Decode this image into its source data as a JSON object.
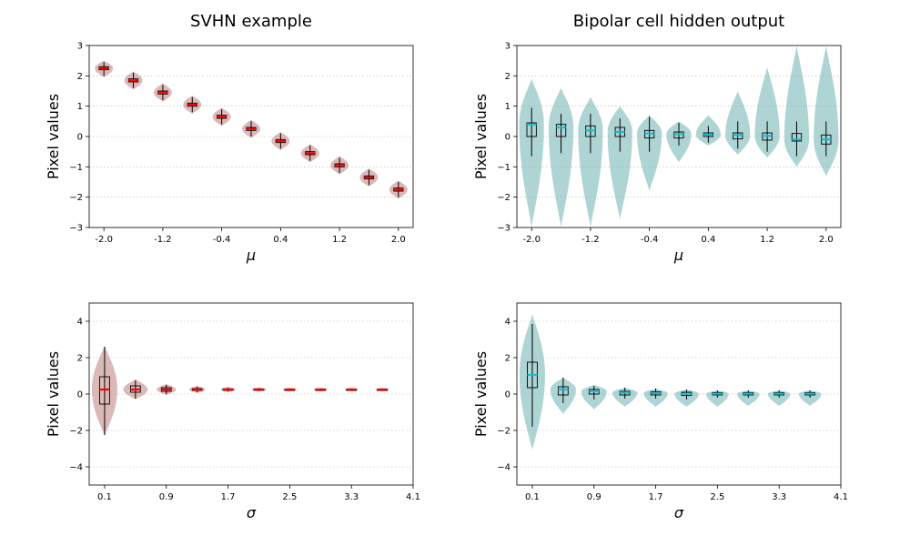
{
  "chart_data": [
    {
      "type": "violin",
      "title": "SVHN example",
      "xlabel": "μ",
      "ylabel": "Pixel values",
      "xticks": [
        "-2.0",
        "-1.2",
        "-0.4",
        "0.4",
        "1.2",
        "2.0"
      ],
      "yticks": [
        "3",
        "2",
        "1",
        "0",
        "−1",
        "−2",
        "−3"
      ],
      "ylim": [
        -3,
        3
      ],
      "grid": "horizontal dotted",
      "fill_color": "#c48a8a",
      "median_color": "#ff0000",
      "x": [
        -2.0,
        -1.6,
        -1.2,
        -0.8,
        -0.4,
        0.0,
        0.4,
        0.8,
        1.2,
        1.6,
        2.0
      ],
      "violins": [
        {
          "median": 2.25,
          "q1": 2.2,
          "q3": 2.3,
          "min": 2.0,
          "max": 2.45
        },
        {
          "median": 1.85,
          "q1": 1.8,
          "q3": 1.9,
          "min": 1.6,
          "max": 2.1
        },
        {
          "median": 1.45,
          "q1": 1.4,
          "q3": 1.5,
          "min": 1.2,
          "max": 1.7
        },
        {
          "median": 1.05,
          "q1": 1.0,
          "q3": 1.1,
          "min": 0.8,
          "max": 1.3
        },
        {
          "median": 0.65,
          "q1": 0.6,
          "q3": 0.7,
          "min": 0.4,
          "max": 0.9
        },
        {
          "median": 0.25,
          "q1": 0.2,
          "q3": 0.3,
          "min": 0.0,
          "max": 0.5
        },
        {
          "median": -0.15,
          "q1": -0.2,
          "q3": -0.1,
          "min": -0.4,
          "max": 0.1
        },
        {
          "median": -0.55,
          "q1": -0.6,
          "q3": -0.5,
          "min": -0.8,
          "max": -0.3
        },
        {
          "median": -0.95,
          "q1": -1.0,
          "q3": -0.9,
          "min": -1.2,
          "max": -0.7
        },
        {
          "median": -1.35,
          "q1": -1.4,
          "q3": -1.3,
          "min": -1.6,
          "max": -1.1
        },
        {
          "median": -1.75,
          "q1": -1.8,
          "q3": -1.7,
          "min": -2.0,
          "max": -1.5
        }
      ]
    },
    {
      "type": "violin",
      "title": "Bipolar cell hidden output",
      "xlabel": "μ",
      "ylabel": "Pixel values",
      "xticks": [
        "-2.0",
        "-1.2",
        "-0.4",
        "0.4",
        "1.2",
        "2.0"
      ],
      "yticks": [
        "3",
        "2",
        "1",
        "0",
        "−1",
        "−2",
        "−3"
      ],
      "ylim": [
        -3,
        3
      ],
      "grid": "horizontal dotted",
      "fill_color": "#7ab8b8",
      "median_color": "#17becf",
      "x": [
        -2.0,
        -1.6,
        -1.2,
        -0.8,
        -0.4,
        0.0,
        0.4,
        0.8,
        1.2,
        1.6,
        2.0
      ],
      "violins": [
        {
          "median": 0.4,
          "q1": 0.0,
          "q3": 0.45,
          "min": -0.65,
          "max": 0.95,
          "vmin": -3.0,
          "vmax": 1.9
        },
        {
          "median": 0.3,
          "q1": 0.0,
          "q3": 0.4,
          "min": -0.55,
          "max": 0.75,
          "vmin": -3.0,
          "vmax": 1.6
        },
        {
          "median": 0.2,
          "q1": 0.0,
          "q3": 0.35,
          "min": -0.55,
          "max": 0.75,
          "vmin": -3.0,
          "vmax": 1.3
        },
        {
          "median": 0.15,
          "q1": 0.0,
          "q3": 0.3,
          "min": -0.5,
          "max": 0.6,
          "vmin": -2.75,
          "vmax": 1.0
        },
        {
          "median": 0.1,
          "q1": -0.05,
          "q3": 0.2,
          "min": -0.5,
          "max": 0.65,
          "vmin": -1.8,
          "vmax": 0.7
        },
        {
          "median": 0.08,
          "q1": -0.05,
          "q3": 0.15,
          "min": -0.3,
          "max": 0.45,
          "vmin": -0.85,
          "vmax": 0.5
        },
        {
          "median": 0.06,
          "q1": 0.0,
          "q3": 0.12,
          "min": -0.2,
          "max": 0.35,
          "vmin": -0.3,
          "vmax": 0.7
        },
        {
          "median": 0.05,
          "q1": -0.08,
          "q3": 0.12,
          "min": -0.4,
          "max": 0.5,
          "vmin": -0.6,
          "vmax": 1.5
        },
        {
          "median": 0.02,
          "q1": -0.12,
          "q3": 0.12,
          "min": -0.5,
          "max": 0.5,
          "vmin": -0.7,
          "vmax": 2.3
        },
        {
          "median": -0.1,
          "q1": -0.15,
          "q3": 0.1,
          "min": -0.65,
          "max": 0.5,
          "vmin": -1.0,
          "vmax": 3.0
        },
        {
          "median": -0.1,
          "q1": -0.25,
          "q3": 0.05,
          "min": -0.65,
          "max": 0.5,
          "vmin": -1.3,
          "vmax": 3.0
        }
      ]
    },
    {
      "type": "violin",
      "title": "",
      "xlabel": "σ",
      "ylabel": "Pixel values",
      "xticks": [
        "0.1",
        "0.9",
        "1.7",
        "2.5",
        "3.3",
        "4.1"
      ],
      "yticks": [
        "4",
        "2",
        "0",
        "−2",
        "−4"
      ],
      "ylim": [
        -5,
        5
      ],
      "grid": "horizontal dotted",
      "fill_color": "#c48a8a",
      "median_color": "#ff0000",
      "x": [
        0.1,
        0.5,
        0.9,
        1.3,
        1.7,
        2.1,
        2.5,
        2.9,
        3.3,
        3.7
      ],
      "violins": [
        {
          "median": 0.25,
          "q1": -0.55,
          "q3": 0.95,
          "min": -2.25,
          "max": 2.6
        },
        {
          "median": 0.25,
          "q1": 0.1,
          "q3": 0.45,
          "min": -0.25,
          "max": 0.75
        },
        {
          "median": 0.25,
          "q1": 0.15,
          "q3": 0.35,
          "min": 0.0,
          "max": 0.5
        },
        {
          "median": 0.25,
          "q1": 0.2,
          "q3": 0.3,
          "min": 0.1,
          "max": 0.4
        },
        {
          "median": 0.25,
          "q1": 0.22,
          "q3": 0.28,
          "min": 0.15,
          "max": 0.35
        },
        {
          "median": 0.25,
          "q1": 0.22,
          "q3": 0.28,
          "min": 0.18,
          "max": 0.32
        },
        {
          "median": 0.25,
          "q1": 0.23,
          "q3": 0.27,
          "min": 0.2,
          "max": 0.3
        },
        {
          "median": 0.25,
          "q1": 0.23,
          "q3": 0.27,
          "min": 0.2,
          "max": 0.3
        },
        {
          "median": 0.25,
          "q1": 0.23,
          "q3": 0.27,
          "min": 0.21,
          "max": 0.29
        },
        {
          "median": 0.25,
          "q1": 0.23,
          "q3": 0.27,
          "min": 0.21,
          "max": 0.29
        }
      ]
    },
    {
      "type": "violin",
      "title": "",
      "xlabel": "σ",
      "ylabel": "Pixel values",
      "xticks": [
        "0.1",
        "0.9",
        "1.7",
        "2.5",
        "3.3",
        "4.1"
      ],
      "yticks": [
        "4",
        "2",
        "0",
        "−2",
        "−4"
      ],
      "ylim": [
        -5,
        5
      ],
      "grid": "horizontal dotted",
      "fill_color": "#7ab8b8",
      "median_color": "#17becf",
      "x": [
        0.1,
        0.5,
        0.9,
        1.3,
        1.7,
        2.1,
        2.5,
        2.9,
        3.3,
        3.7
      ],
      "violins": [
        {
          "median": 1.05,
          "q1": 0.35,
          "q3": 1.75,
          "min": -1.8,
          "max": 3.85,
          "vmin": -3.1,
          "vmax": 4.4
        },
        {
          "median": 0.25,
          "q1": -0.05,
          "q3": 0.4,
          "min": -0.5,
          "max": 0.9,
          "vmin": -1.1,
          "vmax": 0.9
        },
        {
          "median": 0.15,
          "q1": 0.0,
          "q3": 0.25,
          "min": -0.3,
          "max": 0.45,
          "vmin": -0.85,
          "vmax": 0.5
        },
        {
          "median": 0.08,
          "q1": -0.05,
          "q3": 0.15,
          "min": -0.25,
          "max": 0.35,
          "vmin": -0.7,
          "vmax": 0.35
        },
        {
          "median": 0.05,
          "q1": -0.05,
          "q3": 0.12,
          "min": -0.25,
          "max": 0.3,
          "vmin": -0.7,
          "vmax": 0.3
        },
        {
          "median": 0.02,
          "q1": -0.08,
          "q3": 0.1,
          "min": -0.3,
          "max": 0.25,
          "vmin": -0.7,
          "vmax": 0.25
        },
        {
          "median": 0.02,
          "q1": -0.05,
          "q3": 0.08,
          "min": -0.2,
          "max": 0.2,
          "vmin": -0.7,
          "vmax": 0.2
        },
        {
          "median": 0.02,
          "q1": -0.05,
          "q3": 0.08,
          "min": -0.2,
          "max": 0.2,
          "vmin": -0.65,
          "vmax": 0.2
        },
        {
          "median": 0.02,
          "q1": -0.05,
          "q3": 0.08,
          "min": -0.2,
          "max": 0.2,
          "vmin": -0.65,
          "vmax": 0.2
        },
        {
          "median": 0.02,
          "q1": -0.05,
          "q3": 0.08,
          "min": -0.2,
          "max": 0.2,
          "vmin": -0.65,
          "vmax": 0.2
        }
      ]
    }
  ]
}
